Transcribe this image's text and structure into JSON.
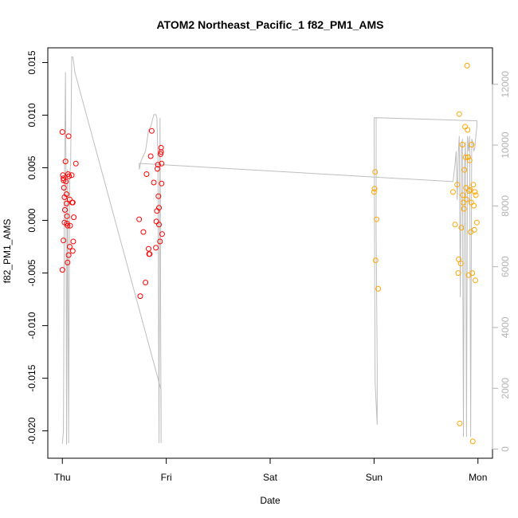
{
  "chart_data": {
    "type": "scatter",
    "title": "ATOM2 Northeast_Pacific_1 f82_PM1_AMS",
    "xlabel": "Date",
    "ylabel": "f82_PM1_AMS",
    "x_ticks": [
      "Thu",
      "Fri",
      "Sat",
      "Sun",
      "Mon"
    ],
    "xlim": [
      -0.14,
      4.14
    ],
    "ylim": [
      -0.0226,
      0.0164
    ],
    "y_ticks": [
      -0.02,
      -0.015,
      -0.01,
      -0.005,
      0.0,
      0.005,
      0.01,
      0.015
    ],
    "y_tick_labels": [
      "-0.020",
      "-0.015",
      "-0.010",
      "-0.005",
      "0.000",
      "0.005",
      "0.010",
      "0.015"
    ],
    "y2lim": [
      -300,
      13200
    ],
    "y2_ticks": [
      0,
      2000,
      4000,
      6000,
      8000,
      10000,
      12000
    ],
    "y2_tick_labels": [
      "0",
      "2000",
      "4000",
      "6000",
      "8000",
      "10000",
      "12000"
    ],
    "colors": {
      "group1": "#ff0000",
      "group2": "#ffa500",
      "altitude": "#bebebe",
      "axis": "#000000",
      "right_axis": "#b3b3b3"
    },
    "series": [
      {
        "color": "#ff0000",
        "points": [
          [
            0.0,
            0.0084
          ],
          [
            0.005,
            0.0043
          ],
          [
            0.01,
            0.004
          ],
          [
            0.012,
            0.0038
          ],
          [
            0.015,
            0.0031
          ],
          [
            0.02,
            0.0022
          ],
          [
            0.025,
            0.001
          ],
          [
            0.02,
            -0.0002
          ],
          [
            0.01,
            -0.0019
          ],
          [
            0.0,
            -0.0047
          ],
          [
            0.03,
            0.0056
          ],
          [
            0.035,
            0.0037
          ],
          [
            0.04,
            0.0025
          ],
          [
            0.04,
            0.0016
          ],
          [
            0.045,
            0.0004
          ],
          [
            0.045,
            -0.0003
          ],
          [
            0.05,
            -0.0005
          ],
          [
            0.055,
            0.0044
          ],
          [
            0.06,
            0.008
          ],
          [
            0.065,
            0.0042
          ],
          [
            0.07,
            0.002
          ],
          [
            0.075,
            -0.0005
          ],
          [
            0.07,
            -0.0025
          ],
          [
            0.06,
            -0.0033
          ],
          [
            0.05,
            -0.004
          ],
          [
            0.09,
            0.0043
          ],
          [
            0.095,
            0.0017
          ],
          [
            0.1,
            0.0017
          ],
          [
            0.11,
            0.0003
          ],
          [
            0.105,
            -0.002
          ],
          [
            0.1,
            -0.0029
          ],
          [
            0.13,
            0.0054
          ],
          [
            0.74,
            0.0001
          ],
          [
            0.75,
            -0.0072
          ],
          [
            0.78,
            -0.0011
          ],
          [
            0.8,
            -0.0059
          ],
          [
            0.81,
            0.0044
          ],
          [
            0.83,
            -0.0027
          ],
          [
            0.835,
            -0.0032
          ],
          [
            0.84,
            -0.0032
          ],
          [
            0.85,
            0.0061
          ],
          [
            0.86,
            0.0085
          ],
          [
            0.88,
            0.0036
          ],
          [
            0.9,
            -0.0026
          ],
          [
            0.905,
            -0.0001
          ],
          [
            0.91,
            0.0009
          ],
          [
            0.915,
            0.0049
          ],
          [
            0.92,
            0.0053
          ],
          [
            0.925,
            0.0023
          ],
          [
            0.93,
            0.0012
          ],
          [
            0.93,
            -0.0004
          ],
          [
            0.94,
            -0.002
          ],
          [
            0.945,
            0.0063
          ],
          [
            0.95,
            0.0069
          ],
          [
            0.95,
            0.0065
          ],
          [
            0.955,
            0.0054
          ],
          [
            0.955,
            0.0035
          ],
          [
            0.96,
            -0.0013
          ]
        ]
      },
      {
        "color": "#ffa500",
        "points": [
          [
            3.0,
            0.0027
          ],
          [
            3.005,
            0.003
          ],
          [
            3.01,
            0.0046
          ],
          [
            3.015,
            -0.0038
          ],
          [
            3.025,
            0.0001
          ],
          [
            3.04,
            -0.0065
          ],
          [
            3.76,
            0.0027
          ],
          [
            3.78,
            -0.0004
          ],
          [
            3.8,
            0.0034
          ],
          [
            3.81,
            -0.005
          ],
          [
            3.815,
            -0.0037
          ],
          [
            3.82,
            0.0101
          ],
          [
            3.825,
            -0.0193
          ],
          [
            3.835,
            -0.0041
          ],
          [
            3.84,
            -0.0007
          ],
          [
            3.85,
            0.0072
          ],
          [
            3.855,
            0.0024
          ],
          [
            3.86,
            0.0017
          ],
          [
            3.865,
            0.0011
          ],
          [
            3.87,
            0.0048
          ],
          [
            3.875,
            0.0089
          ],
          [
            3.88,
            0.006
          ],
          [
            3.885,
            0.0031
          ],
          [
            3.89,
            0.002
          ],
          [
            3.895,
            0.0147
          ],
          [
            3.9,
            0.0086
          ],
          [
            3.905,
            0.006
          ],
          [
            3.91,
            -0.0052
          ],
          [
            3.915,
            0.0028
          ],
          [
            3.92,
            0.0057
          ],
          [
            3.925,
            0.0029
          ],
          [
            3.93,
            -0.0011
          ],
          [
            3.935,
            0.0017
          ],
          [
            3.94,
            0.0072
          ],
          [
            3.945,
            -0.005
          ],
          [
            3.95,
            -0.021
          ],
          [
            3.955,
            0.0034
          ],
          [
            3.96,
            0.0014
          ],
          [
            3.965,
            -0.0009
          ],
          [
            3.97,
            0.0027
          ],
          [
            3.975,
            -0.0057
          ],
          [
            3.98,
            0.0024
          ],
          [
            3.99,
            -0.0002
          ]
        ]
      }
    ],
    "altitude_line": [
      [
        0.0,
        180
      ],
      [
        0.01,
        600
      ],
      [
        0.02,
        8800
      ],
      [
        0.03,
        12400
      ],
      [
        0.035,
        9000
      ],
      [
        0.04,
        150
      ],
      [
        0.05,
        9200
      ],
      [
        0.06,
        200
      ],
      [
        0.07,
        8800
      ],
      [
        0.08,
        9500
      ],
      [
        0.09,
        12900
      ],
      [
        0.1,
        12900
      ],
      [
        0.11,
        12700
      ],
      [
        0.12,
        12400
      ],
      [
        0.95,
        1950
      ],
      [
        0.95,
        200
      ],
      [
        0.94,
        10900
      ],
      [
        0.93,
        200
      ],
      [
        0.92,
        9500
      ],
      [
        0.91,
        10900
      ],
      [
        0.9,
        11000
      ],
      [
        0.88,
        11000
      ],
      [
        0.85,
        10600
      ],
      [
        0.83,
        10500
      ],
      [
        0.8,
        9800
      ],
      [
        0.76,
        9500
      ],
      [
        0.74,
        9200
      ],
      [
        0.74,
        9400
      ],
      [
        3.76,
        8800
      ],
      [
        3.78,
        9400
      ],
      [
        3.79,
        9800
      ],
      [
        3.8,
        8200
      ],
      [
        3.81,
        9700
      ],
      [
        3.82,
        10300
      ],
      [
        3.83,
        5000
      ],
      [
        3.84,
        9800
      ],
      [
        3.85,
        10200
      ],
      [
        3.86,
        400
      ],
      [
        3.87,
        9200
      ],
      [
        3.88,
        10100
      ],
      [
        3.89,
        400
      ],
      [
        3.9,
        10300
      ],
      [
        3.91,
        9800
      ],
      [
        3.92,
        10300
      ],
      [
        3.93,
        400
      ],
      [
        3.94,
        10200
      ],
      [
        3.95,
        10100
      ],
      [
        3.96,
        9800
      ],
      [
        3.97,
        9900
      ],
      [
        3.98,
        10300
      ],
      [
        3.99,
        10600
      ],
      [
        3.99,
        10800
      ],
      [
        3.02,
        10900
      ],
      [
        3.02,
        7200
      ],
      [
        3.03,
        2700
      ],
      [
        3.03,
        800
      ],
      [
        3.01,
        2200
      ],
      [
        3.0,
        10900
      ],
      [
        3.02,
        10900
      ]
    ]
  }
}
